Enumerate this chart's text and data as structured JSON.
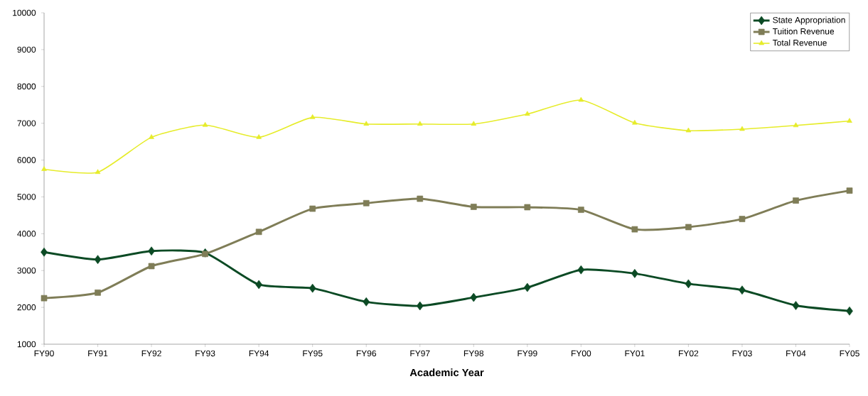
{
  "chart_data": {
    "type": "line",
    "xlabel": "Academic Year",
    "categories": [
      "FY90",
      "FY91",
      "FY92",
      "FY93",
      "FY94",
      "FY95",
      "FY96",
      "FY97",
      "FY98",
      "FY99",
      "FY00",
      "FY01",
      "FY02",
      "FY03",
      "FY04",
      "FY05"
    ],
    "series": [
      {
        "name": "State Appropriation",
        "color": "#0b4a24",
        "marker": "diamond",
        "values": [
          3500,
          3300,
          3530,
          3480,
          2620,
          2520,
          2150,
          2040,
          2270,
          2540,
          3020,
          2920,
          2640,
          2470,
          2050,
          1900
        ]
      },
      {
        "name": "Tuition Revenue",
        "color": "#7f7d57",
        "marker": "square",
        "values": [
          2250,
          2400,
          3120,
          3450,
          4050,
          4680,
          4830,
          4950,
          4730,
          4720,
          4650,
          4120,
          4180,
          4400,
          4900,
          5170
        ]
      },
      {
        "name": "Total Revenue",
        "color": "#e6ec2a",
        "marker": "triangle",
        "values": [
          5750,
          5670,
          6620,
          6950,
          6620,
          7160,
          6980,
          6980,
          6980,
          7250,
          7630,
          7010,
          6800,
          6840,
          6940,
          7060
        ]
      }
    ],
    "ylim": [
      1000,
      10000
    ],
    "yticks": [
      1000,
      2000,
      3000,
      4000,
      5000,
      6000,
      7000,
      8000,
      9000,
      10000
    ],
    "grid": false,
    "legend": "top right",
    "line_style": "solid"
  }
}
